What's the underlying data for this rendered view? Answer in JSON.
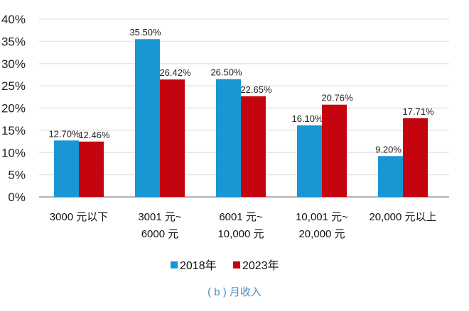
{
  "chart_data": {
    "type": "bar",
    "categories": [
      [
        "3000 元以下"
      ],
      [
        "3001 元~",
        "6000 元"
      ],
      [
        "6001 元~",
        "10,000 元"
      ],
      [
        "10,001 元~",
        "20,000 元"
      ],
      [
        "20,000 元以上"
      ]
    ],
    "series": [
      {
        "name": "2018年",
        "color": "#1a96d4",
        "values": [
          12.7,
          35.5,
          26.5,
          16.1,
          9.2
        ],
        "labels": [
          "12.70%",
          "35.50%",
          "26.50%",
          "16.10%",
          "9.20%"
        ]
      },
      {
        "name": "2023年",
        "color": "#c4050f",
        "values": [
          12.46,
          26.42,
          22.65,
          20.76,
          17.71
        ],
        "labels": [
          "12.46%",
          "26.42%",
          "22.65%",
          "20.76%",
          "17.71%"
        ]
      }
    ],
    "ylim": [
      0,
      40
    ],
    "yticks": [
      "0%",
      "5%",
      "10%",
      "15%",
      "20%",
      "25%",
      "30%",
      "35%",
      "40%"
    ],
    "grid": true,
    "legend": "bottom",
    "caption": "( b ) 月收入"
  }
}
